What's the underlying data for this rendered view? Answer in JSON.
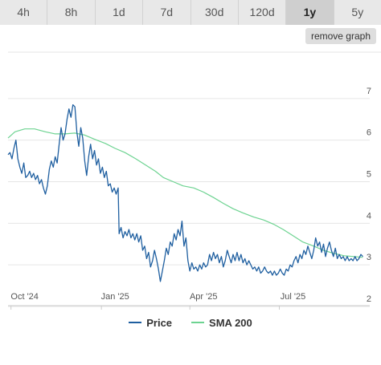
{
  "tabs": [
    {
      "label": "4h"
    },
    {
      "label": "8h"
    },
    {
      "label": "1d"
    },
    {
      "label": "7d"
    },
    {
      "label": "30d"
    },
    {
      "label": "120d"
    },
    {
      "label": "1y"
    },
    {
      "label": "5y"
    }
  ],
  "active_tab": "1y",
  "remove_graph_label": "remove graph",
  "colors": {
    "price": "#1f5fa0",
    "sma": "#6dd391",
    "grid": "#e6e6e6",
    "axis_text": "#555555"
  },
  "chart_data": {
    "type": "line",
    "x_ticks": [
      "Oct '24",
      "Jan '25",
      "Apr '25",
      "Jul '25"
    ],
    "x_tick_dates": [
      "2024-10-01",
      "2025-01-01",
      "2025-04-01",
      "2025-07-01"
    ],
    "x_range": [
      "2024-09-28",
      "2025-10-01"
    ],
    "ylim": [
      2,
      8
    ],
    "y_ticks": [
      2,
      3,
      4,
      5,
      6,
      7
    ],
    "grid": true,
    "legend_position": "bottom-center",
    "series": [
      {
        "name": "Price",
        "color": "#1f5fa0",
        "points": [
          [
            "2024-09-28",
            5.65
          ],
          [
            "2024-09-30",
            5.7
          ],
          [
            "2024-10-02",
            5.55
          ],
          [
            "2024-10-04",
            5.8
          ],
          [
            "2024-10-06",
            6.0
          ],
          [
            "2024-10-08",
            5.55
          ],
          [
            "2024-10-10",
            5.35
          ],
          [
            "2024-10-12",
            5.2
          ],
          [
            "2024-10-14",
            5.45
          ],
          [
            "2024-10-16",
            5.1
          ],
          [
            "2024-10-18",
            5.15
          ],
          [
            "2024-10-20",
            5.25
          ],
          [
            "2024-10-22",
            5.1
          ],
          [
            "2024-10-24",
            5.2
          ],
          [
            "2024-10-26",
            5.05
          ],
          [
            "2024-10-28",
            5.15
          ],
          [
            "2024-10-30",
            4.95
          ],
          [
            "2024-11-01",
            5.05
          ],
          [
            "2024-11-03",
            4.85
          ],
          [
            "2024-11-05",
            4.7
          ],
          [
            "2024-11-07",
            4.9
          ],
          [
            "2024-11-09",
            5.3
          ],
          [
            "2024-11-11",
            5.5
          ],
          [
            "2024-11-13",
            5.35
          ],
          [
            "2024-11-15",
            5.6
          ],
          [
            "2024-11-17",
            5.45
          ],
          [
            "2024-11-19",
            5.9
          ],
          [
            "2024-11-21",
            6.3
          ],
          [
            "2024-11-23",
            6.0
          ],
          [
            "2024-11-25",
            6.15
          ],
          [
            "2024-11-27",
            6.5
          ],
          [
            "2024-11-29",
            6.75
          ],
          [
            "2024-12-01",
            6.55
          ],
          [
            "2024-12-03",
            6.85
          ],
          [
            "2024-12-05",
            6.8
          ],
          [
            "2024-12-07",
            6.2
          ],
          [
            "2024-12-09",
            5.85
          ],
          [
            "2024-12-11",
            6.3
          ],
          [
            "2024-12-13",
            6.05
          ],
          [
            "2024-12-15",
            5.5
          ],
          [
            "2024-12-17",
            5.15
          ],
          [
            "2024-12-19",
            5.6
          ],
          [
            "2024-12-21",
            5.9
          ],
          [
            "2024-12-23",
            5.55
          ],
          [
            "2024-12-25",
            5.75
          ],
          [
            "2024-12-27",
            5.4
          ],
          [
            "2024-12-29",
            5.55
          ],
          [
            "2024-12-31",
            5.2
          ],
          [
            "2025-01-02",
            5.35
          ],
          [
            "2025-01-04",
            5.1
          ],
          [
            "2025-01-06",
            5.25
          ],
          [
            "2025-01-08",
            4.9
          ],
          [
            "2025-01-10",
            4.95
          ],
          [
            "2025-01-12",
            4.75
          ],
          [
            "2025-01-14",
            4.85
          ],
          [
            "2025-01-16",
            4.7
          ],
          [
            "2025-01-18",
            4.85
          ],
          [
            "2025-01-19",
            3.75
          ],
          [
            "2025-01-21",
            3.9
          ],
          [
            "2025-01-23",
            3.65
          ],
          [
            "2025-01-25",
            3.8
          ],
          [
            "2025-01-27",
            3.7
          ],
          [
            "2025-01-29",
            3.85
          ],
          [
            "2025-01-31",
            3.65
          ],
          [
            "2025-02-02",
            3.75
          ],
          [
            "2025-02-04",
            3.6
          ],
          [
            "2025-02-06",
            3.75
          ],
          [
            "2025-02-08",
            3.55
          ],
          [
            "2025-02-10",
            3.7
          ],
          [
            "2025-02-12",
            3.35
          ],
          [
            "2025-02-14",
            3.45
          ],
          [
            "2025-02-16",
            3.15
          ],
          [
            "2025-02-18",
            3.3
          ],
          [
            "2025-02-20",
            2.95
          ],
          [
            "2025-02-22",
            3.1
          ],
          [
            "2025-02-24",
            3.35
          ],
          [
            "2025-02-26",
            3.15
          ],
          [
            "2025-02-28",
            2.9
          ],
          [
            "2025-03-02",
            2.6
          ],
          [
            "2025-03-04",
            2.85
          ],
          [
            "2025-03-06",
            3.1
          ],
          [
            "2025-03-08",
            3.4
          ],
          [
            "2025-03-10",
            3.25
          ],
          [
            "2025-03-12",
            3.55
          ],
          [
            "2025-03-14",
            3.45
          ],
          [
            "2025-03-16",
            3.75
          ],
          [
            "2025-03-18",
            3.6
          ],
          [
            "2025-03-20",
            3.85
          ],
          [
            "2025-03-22",
            3.7
          ],
          [
            "2025-03-24",
            4.05
          ],
          [
            "2025-03-26",
            3.45
          ],
          [
            "2025-03-28",
            3.65
          ],
          [
            "2025-03-30",
            3.1
          ],
          [
            "2025-04-01",
            2.85
          ],
          [
            "2025-04-03",
            3.05
          ],
          [
            "2025-04-05",
            2.9
          ],
          [
            "2025-04-07",
            2.95
          ],
          [
            "2025-04-09",
            2.85
          ],
          [
            "2025-04-11",
            3.0
          ],
          [
            "2025-04-13",
            2.9
          ],
          [
            "2025-04-15",
            3.05
          ],
          [
            "2025-04-17",
            2.95
          ],
          [
            "2025-04-19",
            3.0
          ],
          [
            "2025-04-21",
            3.25
          ],
          [
            "2025-04-23",
            3.1
          ],
          [
            "2025-04-25",
            3.3
          ],
          [
            "2025-04-27",
            3.15
          ],
          [
            "2025-04-29",
            3.25
          ],
          [
            "2025-05-01",
            3.05
          ],
          [
            "2025-05-03",
            3.2
          ],
          [
            "2025-05-05",
            2.95
          ],
          [
            "2025-05-07",
            3.1
          ],
          [
            "2025-05-09",
            3.35
          ],
          [
            "2025-05-11",
            3.2
          ],
          [
            "2025-05-13",
            3.05
          ],
          [
            "2025-05-15",
            3.25
          ],
          [
            "2025-05-17",
            3.1
          ],
          [
            "2025-05-19",
            3.3
          ],
          [
            "2025-05-21",
            3.1
          ],
          [
            "2025-05-23",
            3.25
          ],
          [
            "2025-05-25",
            3.05
          ],
          [
            "2025-05-27",
            3.15
          ],
          [
            "2025-05-29",
            3.0
          ],
          [
            "2025-05-31",
            3.1
          ],
          [
            "2025-06-02",
            3.0
          ],
          [
            "2025-06-04",
            2.9
          ],
          [
            "2025-06-06",
            2.95
          ],
          [
            "2025-06-08",
            2.85
          ],
          [
            "2025-06-10",
            2.95
          ],
          [
            "2025-06-12",
            2.8
          ],
          [
            "2025-06-14",
            2.85
          ],
          [
            "2025-06-16",
            2.95
          ],
          [
            "2025-06-18",
            2.85
          ],
          [
            "2025-06-20",
            2.8
          ],
          [
            "2025-06-22",
            2.85
          ],
          [
            "2025-06-24",
            2.75
          ],
          [
            "2025-06-26",
            2.85
          ],
          [
            "2025-06-28",
            2.75
          ],
          [
            "2025-06-30",
            2.8
          ],
          [
            "2025-07-02",
            2.9
          ],
          [
            "2025-07-04",
            2.8
          ],
          [
            "2025-07-06",
            2.75
          ],
          [
            "2025-07-08",
            2.9
          ],
          [
            "2025-07-10",
            2.85
          ],
          [
            "2025-07-12",
            3.0
          ],
          [
            "2025-07-14",
            2.95
          ],
          [
            "2025-07-16",
            3.1
          ],
          [
            "2025-07-18",
            3.2
          ],
          [
            "2025-07-20",
            3.05
          ],
          [
            "2025-07-22",
            3.25
          ],
          [
            "2025-07-24",
            3.15
          ],
          [
            "2025-07-26",
            3.35
          ],
          [
            "2025-07-28",
            3.25
          ],
          [
            "2025-07-30",
            3.45
          ],
          [
            "2025-08-01",
            3.3
          ],
          [
            "2025-08-03",
            3.15
          ],
          [
            "2025-08-05",
            3.35
          ],
          [
            "2025-08-07",
            3.65
          ],
          [
            "2025-08-09",
            3.45
          ],
          [
            "2025-08-11",
            3.55
          ],
          [
            "2025-08-13",
            3.3
          ],
          [
            "2025-08-15",
            3.5
          ],
          [
            "2025-08-17",
            3.2
          ],
          [
            "2025-08-19",
            3.4
          ],
          [
            "2025-08-21",
            3.55
          ],
          [
            "2025-08-23",
            3.35
          ],
          [
            "2025-08-25",
            3.2
          ],
          [
            "2025-08-27",
            3.4
          ],
          [
            "2025-08-29",
            3.15
          ],
          [
            "2025-08-31",
            3.25
          ],
          [
            "2025-09-02",
            3.15
          ],
          [
            "2025-09-04",
            3.2
          ],
          [
            "2025-09-06",
            3.1
          ],
          [
            "2025-09-08",
            3.2
          ],
          [
            "2025-09-10",
            3.1
          ],
          [
            "2025-09-12",
            3.15
          ],
          [
            "2025-09-14",
            3.1
          ],
          [
            "2025-09-16",
            3.2
          ],
          [
            "2025-09-18",
            3.1
          ],
          [
            "2025-09-20",
            3.15
          ],
          [
            "2025-09-22",
            3.25
          ],
          [
            "2025-09-24",
            3.2
          ]
        ]
      },
      {
        "name": "SMA 200",
        "color": "#6dd391",
        "points": [
          [
            "2024-09-28",
            6.05
          ],
          [
            "2024-10-05",
            6.2
          ],
          [
            "2024-10-15",
            6.27
          ],
          [
            "2024-10-25",
            6.27
          ],
          [
            "2024-11-05",
            6.2
          ],
          [
            "2024-11-15",
            6.15
          ],
          [
            "2024-11-25",
            6.15
          ],
          [
            "2024-12-05",
            6.17
          ],
          [
            "2024-12-15",
            6.12
          ],
          [
            "2024-12-25",
            6.02
          ],
          [
            "2025-01-05",
            5.92
          ],
          [
            "2025-01-15",
            5.8
          ],
          [
            "2025-01-25",
            5.7
          ],
          [
            "2025-02-05",
            5.55
          ],
          [
            "2025-02-15",
            5.4
          ],
          [
            "2025-02-25",
            5.25
          ],
          [
            "2025-03-05",
            5.1
          ],
          [
            "2025-03-15",
            5.0
          ],
          [
            "2025-03-25",
            4.9
          ],
          [
            "2025-04-05",
            4.85
          ],
          [
            "2025-04-15",
            4.75
          ],
          [
            "2025-04-25",
            4.62
          ],
          [
            "2025-05-05",
            4.48
          ],
          [
            "2025-05-15",
            4.35
          ],
          [
            "2025-05-25",
            4.25
          ],
          [
            "2025-06-05",
            4.15
          ],
          [
            "2025-06-15",
            4.08
          ],
          [
            "2025-06-25",
            3.98
          ],
          [
            "2025-07-05",
            3.85
          ],
          [
            "2025-07-15",
            3.7
          ],
          [
            "2025-07-25",
            3.55
          ],
          [
            "2025-08-05",
            3.45
          ],
          [
            "2025-08-15",
            3.35
          ],
          [
            "2025-08-25",
            3.28
          ],
          [
            "2025-09-05",
            3.22
          ],
          [
            "2025-09-15",
            3.2
          ],
          [
            "2025-09-24",
            3.18
          ]
        ]
      }
    ]
  }
}
